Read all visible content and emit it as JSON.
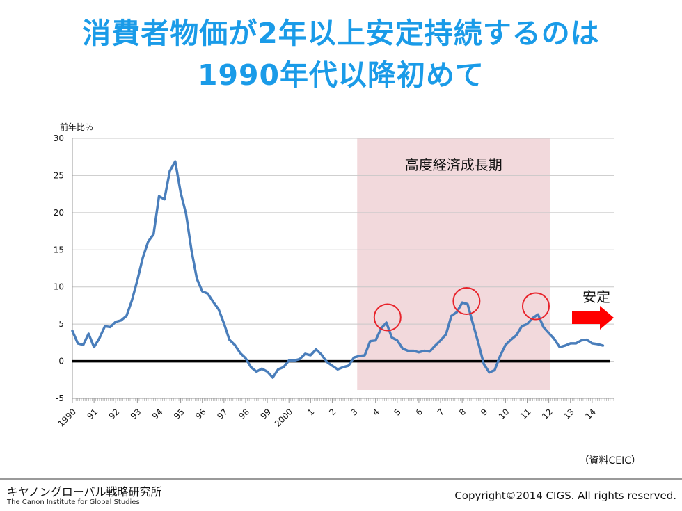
{
  "slide": {
    "title_line1": "消費者物価が2年以上安定持続するのは",
    "title_line2": "1990年代以降初めて"
  },
  "chart_data": {
    "type": "line",
    "title": "",
    "ylabel": "前年比％",
    "xlabel": "",
    "ylim": [
      -5,
      30
    ],
    "yticks": [
      -5,
      0,
      5,
      10,
      15,
      20,
      25,
      30
    ],
    "xlim": [
      1990,
      2015
    ],
    "xtick_labels": [
      {
        "x": 1990,
        "label": "1990"
      },
      {
        "x": 1991,
        "label": "91"
      },
      {
        "x": 1992,
        "label": "92"
      },
      {
        "x": 1993,
        "label": "93"
      },
      {
        "x": 1994,
        "label": "94"
      },
      {
        "x": 1995,
        "label": "95"
      },
      {
        "x": 1996,
        "label": "96"
      },
      {
        "x": 1997,
        "label": "97"
      },
      {
        "x": 1998,
        "label": "98"
      },
      {
        "x": 1999,
        "label": "99"
      },
      {
        "x": 2000,
        "label": "2000"
      },
      {
        "x": 2001,
        "label": "1"
      },
      {
        "x": 2002,
        "label": "2"
      },
      {
        "x": 2003,
        "label": "3"
      },
      {
        "x": 2004,
        "label": "4"
      },
      {
        "x": 2005,
        "label": "5"
      },
      {
        "x": 2006,
        "label": "6"
      },
      {
        "x": 2007,
        "label": "7"
      },
      {
        "x": 2008,
        "label": "8"
      },
      {
        "x": 2009,
        "label": "9"
      },
      {
        "x": 2010,
        "label": "10"
      },
      {
        "x": 2011,
        "label": "11"
      },
      {
        "x": 2012,
        "label": "12"
      },
      {
        "x": 2013,
        "label": "13"
      },
      {
        "x": 2014,
        "label": "14"
      }
    ],
    "series": [
      {
        "color": "#4a7ebb",
        "points": [
          [
            1990.0,
            4.1
          ],
          [
            1990.25,
            2.4
          ],
          [
            1990.5,
            2.2
          ],
          [
            1990.75,
            3.7
          ],
          [
            1991.0,
            1.9
          ],
          [
            1991.25,
            3.1
          ],
          [
            1991.5,
            4.7
          ],
          [
            1991.75,
            4.6
          ],
          [
            1992.0,
            5.3
          ],
          [
            1992.25,
            5.5
          ],
          [
            1992.5,
            6.1
          ],
          [
            1992.75,
            8.2
          ],
          [
            1993.0,
            10.9
          ],
          [
            1993.25,
            13.9
          ],
          [
            1993.5,
            16.1
          ],
          [
            1993.75,
            17.1
          ],
          [
            1994.0,
            22.2
          ],
          [
            1994.25,
            21.8
          ],
          [
            1994.5,
            25.6
          ],
          [
            1994.75,
            26.9
          ],
          [
            1995.0,
            22.7
          ],
          [
            1995.25,
            19.8
          ],
          [
            1995.5,
            14.9
          ],
          [
            1995.75,
            11.1
          ],
          [
            1996.0,
            9.4
          ],
          [
            1996.25,
            9.1
          ],
          [
            1996.5,
            8.0
          ],
          [
            1996.75,
            7.0
          ],
          [
            1997.0,
            5.1
          ],
          [
            1997.25,
            2.9
          ],
          [
            1997.5,
            2.2
          ],
          [
            1997.75,
            1.1
          ],
          [
            1998.0,
            0.4
          ],
          [
            1998.25,
            -0.8
          ],
          [
            1998.5,
            -1.4
          ],
          [
            1998.75,
            -1.0
          ],
          [
            1999.0,
            -1.4
          ],
          [
            1999.25,
            -2.2
          ],
          [
            1999.5,
            -1.1
          ],
          [
            1999.75,
            -0.8
          ],
          [
            2000.0,
            0.1
          ],
          [
            2000.25,
            0.1
          ],
          [
            2000.5,
            0.3
          ],
          [
            2000.75,
            1.0
          ],
          [
            2001.0,
            0.8
          ],
          [
            2001.25,
            1.6
          ],
          [
            2001.5,
            0.9
          ],
          [
            2001.75,
            -0.1
          ],
          [
            2002.0,
            -0.6
          ],
          [
            2002.25,
            -1.1
          ],
          [
            2002.5,
            -0.8
          ],
          [
            2002.75,
            -0.6
          ],
          [
            2003.0,
            0.5
          ],
          [
            2003.25,
            0.7
          ],
          [
            2003.5,
            0.8
          ],
          [
            2003.75,
            2.7
          ],
          [
            2004.0,
            2.8
          ],
          [
            2004.25,
            4.4
          ],
          [
            2004.5,
            5.2
          ],
          [
            2004.75,
            3.2
          ],
          [
            2005.0,
            2.8
          ],
          [
            2005.25,
            1.7
          ],
          [
            2005.5,
            1.4
          ],
          [
            2005.75,
            1.4
          ],
          [
            2006.0,
            1.2
          ],
          [
            2006.25,
            1.4
          ],
          [
            2006.5,
            1.3
          ],
          [
            2006.75,
            2.1
          ],
          [
            2007.0,
            2.8
          ],
          [
            2007.25,
            3.6
          ],
          [
            2007.5,
            6.1
          ],
          [
            2007.75,
            6.6
          ],
          [
            2008.0,
            7.9
          ],
          [
            2008.25,
            7.7
          ],
          [
            2008.5,
            5.0
          ],
          [
            2008.75,
            2.4
          ],
          [
            2009.0,
            -0.4
          ],
          [
            2009.25,
            -1.5
          ],
          [
            2009.5,
            -1.2
          ],
          [
            2009.75,
            0.7
          ],
          [
            2010.0,
            2.2
          ],
          [
            2010.25,
            2.9
          ],
          [
            2010.5,
            3.5
          ],
          [
            2010.75,
            4.7
          ],
          [
            2011.0,
            5.0
          ],
          [
            2011.25,
            5.8
          ],
          [
            2011.5,
            6.3
          ],
          [
            2011.75,
            4.6
          ],
          [
            2012.0,
            3.8
          ],
          [
            2012.25,
            3.0
          ],
          [
            2012.5,
            1.9
          ],
          [
            2012.75,
            2.1
          ],
          [
            2013.0,
            2.4
          ],
          [
            2013.25,
            2.4
          ],
          [
            2013.5,
            2.8
          ],
          [
            2013.75,
            2.9
          ],
          [
            2014.0,
            2.4
          ],
          [
            2014.25,
            2.3
          ],
          [
            2014.5,
            2.1
          ]
        ]
      }
    ],
    "shaded_region": {
      "x_start": 2003.15,
      "x_end": 2012.05,
      "label": "高度経済成長期",
      "color": "#f2d9dc"
    },
    "highlight_circles": [
      {
        "x": 2004.55,
        "y": 5.9
      },
      {
        "x": 2008.2,
        "y": 8.1
      },
      {
        "x": 2011.4,
        "y": 7.4
      }
    ],
    "zero_line": {
      "y": 0,
      "color": "#000000"
    },
    "annotation": {
      "text": "安定",
      "arrow_color": "#ff0000"
    },
    "source_note": "（資料CEIC）"
  },
  "footer": {
    "org_name_ja": "キヤノングローバル戦略研究所",
    "org_name_en": "The Canon Institute for Global Studies",
    "copyright": "Copyright©2014 CIGS. All rights reserved."
  }
}
